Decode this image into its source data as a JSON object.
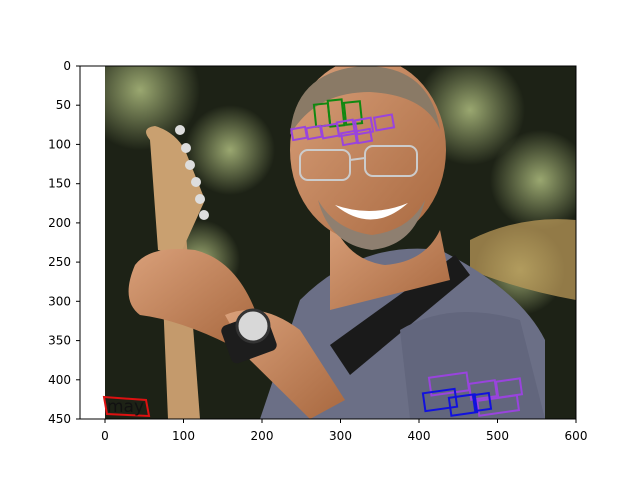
{
  "figure": {
    "x_ticks": [
      "0",
      "100",
      "200",
      "300",
      "400",
      "500",
      "600"
    ],
    "y_ticks": [
      "0",
      "50",
      "100",
      "150",
      "200",
      "250",
      "300",
      "350",
      "400",
      "450"
    ]
  },
  "photo": {
    "subject": "smiling man with glasses playing an electric guitar",
    "colors": {
      "bg_dark": "#1d2216",
      "bokeh_light": "#8a9a66",
      "skin": "#c98b62",
      "shirt": "#6b6f86",
      "guitar_neck": "#c49a6c",
      "hair": "#8a7a66"
    }
  },
  "annotations": {
    "colors": {
      "red": "#dd1111",
      "green": "#118811",
      "purple": "#9944dd",
      "blue": "#1111dd"
    },
    "texts": [
      {
        "text": "may",
        "color": "red"
      }
    ]
  }
}
